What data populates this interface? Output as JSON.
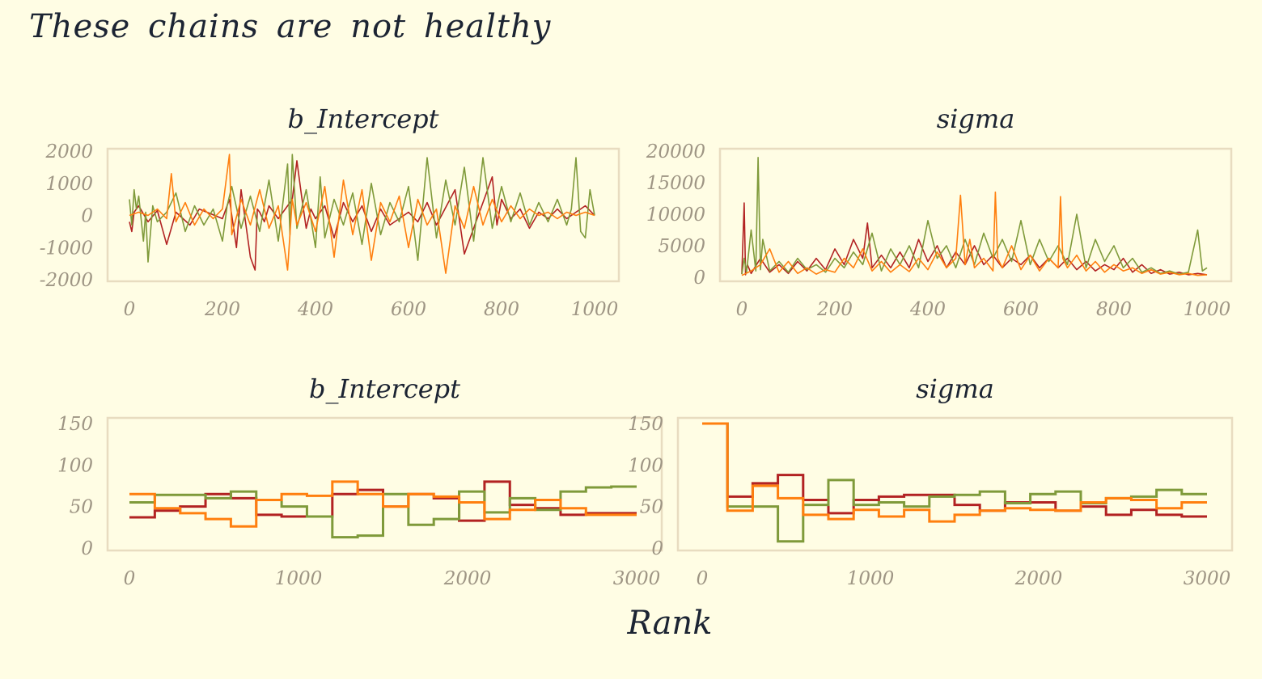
{
  "title": "These chains are not healthy",
  "colors": {
    "background": "#fffde4",
    "frame": "#e8dcc0",
    "tick_text": "#9e9584",
    "title_text": "#1c2433",
    "chain_1": "#b22222",
    "chain_2": "#7f9a3a",
    "chain_3": "#ff7f0e"
  },
  "chart_data": [
    {
      "type": "line",
      "title": "b_Intercept",
      "xlim": [
        0,
        1000
      ],
      "ylim": [
        -2000,
        2000
      ],
      "x_ticks": [
        "0",
        "200",
        "400",
        "600",
        "800",
        "1000"
      ],
      "y_ticks": [
        "2000",
        "1000",
        "0",
        "-1000",
        "-2000"
      ],
      "series": [
        {
          "color": "#b22222",
          "x": [
            0,
            5,
            10,
            20,
            40,
            60,
            80,
            100,
            130,
            150,
            200,
            215,
            230,
            240,
            260,
            270,
            275,
            280,
            290,
            300,
            320,
            350,
            360,
            370,
            380,
            390,
            400,
            420,
            440,
            460,
            480,
            500,
            520,
            540,
            560,
            600,
            620,
            640,
            660,
            700,
            720,
            740,
            760,
            780,
            790,
            800,
            820,
            840,
            860,
            880,
            900,
            920,
            940,
            960,
            980,
            1000
          ],
          "values": [
            -200,
            -500,
            100,
            300,
            -200,
            150,
            -900,
            100,
            -300,
            200,
            -100,
            500,
            -1000,
            800,
            -1300,
            -1700,
            200,
            100,
            -200,
            300,
            -100,
            500,
            1700,
            600,
            -400,
            200,
            -100,
            300,
            -700,
            400,
            -200,
            300,
            -500,
            200,
            -300,
            100,
            -200,
            400,
            -300,
            800,
            -1200,
            -400,
            400,
            1200,
            -300,
            500,
            -100,
            200,
            -400,
            100,
            -100,
            200,
            -100,
            100,
            300,
            0
          ]
        },
        {
          "color": "#7f9a3a",
          "x": [
            0,
            5,
            10,
            15,
            20,
            30,
            35,
            40,
            50,
            60,
            80,
            100,
            120,
            140,
            160,
            180,
            200,
            210,
            220,
            240,
            260,
            280,
            300,
            320,
            340,
            345,
            350,
            360,
            380,
            400,
            410,
            420,
            440,
            460,
            480,
            500,
            520,
            540,
            560,
            580,
            600,
            620,
            640,
            660,
            680,
            700,
            720,
            740,
            760,
            780,
            800,
            820,
            840,
            860,
            880,
            900,
            920,
            940,
            950,
            960,
            970,
            980,
            990,
            1000
          ],
          "values": [
            500,
            -300,
            800,
            200,
            600,
            -800,
            100,
            -1450,
            300,
            -200,
            100,
            700,
            -500,
            300,
            -300,
            200,
            -800,
            300,
            900,
            -400,
            600,
            -500,
            1100,
            -800,
            1600,
            -600,
            1900,
            -400,
            800,
            -1000,
            1200,
            -700,
            500,
            -300,
            700,
            -900,
            1000,
            -600,
            400,
            -200,
            900,
            -1400,
            1800,
            -700,
            1100,
            -300,
            1500,
            -800,
            1800,
            -400,
            900,
            -200,
            700,
            -300,
            400,
            -200,
            500,
            -300,
            200,
            1800,
            -500,
            -700,
            800,
            0
          ]
        },
        {
          "color": "#ff7f0e",
          "x": [
            0,
            20,
            40,
            60,
            80,
            90,
            100,
            120,
            140,
            160,
            180,
            200,
            215,
            220,
            240,
            260,
            280,
            300,
            320,
            340,
            350,
            360,
            380,
            400,
            420,
            440,
            460,
            480,
            500,
            520,
            540,
            560,
            580,
            600,
            620,
            640,
            660,
            680,
            700,
            720,
            740,
            760,
            780,
            800,
            820,
            840,
            860,
            880,
            900,
            920,
            940,
            960,
            980,
            1000
          ],
          "values": [
            0,
            100,
            0,
            200,
            -100,
            1300,
            -200,
            400,
            -300,
            200,
            -100,
            200,
            1900,
            -600,
            500,
            -300,
            800,
            -400,
            300,
            -1700,
            500,
            -300,
            400,
            -500,
            900,
            -1300,
            1100,
            -600,
            800,
            -1400,
            400,
            -200,
            600,
            -1000,
            500,
            -300,
            200,
            -1800,
            300,
            -400,
            900,
            -300,
            500,
            -200,
            300,
            -100,
            200,
            0,
            100,
            -100,
            100,
            0,
            100,
            0
          ]
        }
      ]
    },
    {
      "type": "line",
      "title": "sigma",
      "xlim": [
        0,
        1000
      ],
      "ylim": [
        0,
        20000
      ],
      "x_ticks": [
        "0",
        "200",
        "400",
        "600",
        "800",
        "1000"
      ],
      "y_ticks": [
        "20000",
        "15000",
        "10000",
        "5000",
        "0"
      ],
      "series": [
        {
          "color": "#b22222",
          "x": [
            0,
            5,
            8,
            12,
            20,
            40,
            60,
            80,
            100,
            120,
            140,
            160,
            180,
            200,
            220,
            240,
            260,
            270,
            280,
            300,
            320,
            340,
            360,
            380,
            400,
            420,
            440,
            460,
            480,
            500,
            520,
            540,
            560,
            580,
            600,
            620,
            640,
            660,
            680,
            700,
            720,
            740,
            760,
            780,
            800,
            820,
            840,
            860,
            880,
            900,
            920,
            940,
            960,
            980,
            1000
          ],
          "values": [
            500,
            11800,
            400,
            2000,
            600,
            3000,
            800,
            2000,
            600,
            2500,
            1000,
            3000,
            1200,
            4500,
            2000,
            6000,
            3000,
            8600,
            1500,
            3500,
            1500,
            4000,
            1500,
            6000,
            2500,
            5000,
            1500,
            4000,
            2000,
            5000,
            2000,
            3500,
            1500,
            3000,
            2000,
            3500,
            1500,
            3000,
            1500,
            3000,
            1200,
            2500,
            1000,
            2000,
            1200,
            3000,
            800,
            2000,
            600,
            1200,
            500,
            800,
            400,
            600,
            400
          ]
        },
        {
          "color": "#7f9a3a",
          "x": [
            0,
            5,
            10,
            20,
            30,
            35,
            40,
            45,
            60,
            80,
            100,
            120,
            140,
            160,
            180,
            200,
            220,
            240,
            260,
            280,
            300,
            320,
            340,
            360,
            380,
            400,
            420,
            440,
            460,
            480,
            500,
            520,
            540,
            560,
            580,
            600,
            620,
            640,
            660,
            680,
            700,
            720,
            740,
            760,
            780,
            800,
            820,
            840,
            860,
            880,
            900,
            920,
            940,
            960,
            980,
            990,
            1000
          ],
          "values": [
            500,
            3000,
            800,
            7500,
            1000,
            19000,
            1200,
            6000,
            1000,
            2500,
            800,
            3000,
            1200,
            2000,
            800,
            3000,
            1500,
            4000,
            2000,
            7000,
            1000,
            4500,
            2000,
            5000,
            1500,
            9000,
            3000,
            5000,
            1500,
            6000,
            2000,
            7000,
            3000,
            6000,
            2500,
            9000,
            2000,
            6000,
            2500,
            5000,
            2000,
            10000,
            1500,
            6000,
            2500,
            5000,
            1500,
            3000,
            800,
            1500,
            600,
            1000,
            500,
            800,
            7500,
            1000,
            1500
          ]
        },
        {
          "color": "#ff7f0e",
          "x": [
            0,
            20,
            40,
            60,
            80,
            100,
            120,
            140,
            160,
            180,
            200,
            220,
            240,
            260,
            280,
            300,
            320,
            340,
            360,
            380,
            400,
            420,
            440,
            460,
            470,
            480,
            490,
            500,
            520,
            540,
            545,
            550,
            560,
            580,
            600,
            620,
            640,
            660,
            680,
            685,
            690,
            700,
            720,
            740,
            760,
            780,
            800,
            820,
            840,
            860,
            880,
            900,
            920,
            940,
            960,
            980,
            1000
          ],
          "values": [
            300,
            1000,
            2000,
            4500,
            800,
            2500,
            600,
            1500,
            500,
            1200,
            800,
            3000,
            1500,
            4500,
            1000,
            2500,
            800,
            2000,
            900,
            3000,
            1200,
            4000,
            1500,
            3000,
            13000,
            2000,
            6000,
            1500,
            3000,
            1000,
            13500,
            3000,
            1500,
            5000,
            1200,
            3500,
            1000,
            3000,
            1500,
            12800,
            3000,
            1500,
            3500,
            1000,
            2500,
            800,
            2000,
            1000,
            1500,
            600,
            1200,
            500,
            800,
            400,
            600,
            300,
            400
          ]
        }
      ]
    },
    {
      "type": "line",
      "title": "b_Intercept",
      "xlabel": "Rank",
      "xlim": [
        0,
        3000
      ],
      "ylim": [
        0,
        150
      ],
      "x_ticks": [
        "0",
        "1000",
        "2000",
        "3000"
      ],
      "y_ticks": [
        "150",
        "100",
        "50",
        "0"
      ],
      "bin_edges": [
        0,
        150,
        300,
        450,
        600,
        750,
        900,
        1050,
        1200,
        1350,
        1500,
        1650,
        1800,
        1950,
        2100,
        2250,
        2400,
        2550,
        2700,
        2850,
        3000
      ],
      "series": [
        {
          "color": "#b22222",
          "values": [
            37,
            45,
            50,
            65,
            60,
            40,
            38,
            38,
            65,
            70,
            50,
            65,
            60,
            33,
            80,
            52,
            48,
            40,
            42,
            42
          ]
        },
        {
          "color": "#7f9a3a",
          "values": [
            55,
            64,
            64,
            60,
            68,
            58,
            50,
            38,
            13,
            15,
            65,
            28,
            35,
            68,
            43,
            60,
            46,
            68,
            73,
            74
          ]
        },
        {
          "color": "#ff7f0e",
          "values": [
            65,
            48,
            42,
            35,
            26,
            58,
            65,
            63,
            80,
            65,
            50,
            65,
            62,
            55,
            35,
            46,
            58,
            48,
            40,
            40
          ]
        }
      ]
    },
    {
      "type": "line",
      "title": "sigma",
      "xlim": [
        0,
        3000
      ],
      "ylim": [
        0,
        150
      ],
      "x_ticks": [
        "0",
        "1000",
        "2000",
        "3000"
      ],
      "y_ticks": [
        "150",
        "100",
        "50",
        "0"
      ],
      "bin_edges": [
        0,
        150,
        300,
        450,
        600,
        750,
        900,
        1050,
        1200,
        1350,
        1500,
        1650,
        1800,
        1950,
        2100,
        2250,
        2400,
        2550,
        2700,
        2850,
        3000
      ],
      "series": [
        {
          "color": "#b22222",
          "values": [
            150,
            62,
            78,
            88,
            58,
            42,
            58,
            62,
            64,
            64,
            52,
            45,
            55,
            55,
            45,
            50,
            40,
            46,
            40,
            38
          ]
        },
        {
          "color": "#7f9a3a",
          "values": [
            150,
            50,
            50,
            8,
            52,
            82,
            52,
            55,
            50,
            62,
            64,
            68,
            54,
            65,
            68,
            54,
            60,
            62,
            70,
            65
          ]
        },
        {
          "color": "#ff7f0e",
          "values": [
            150,
            45,
            75,
            60,
            40,
            35,
            46,
            38,
            46,
            32,
            40,
            45,
            48,
            46,
            45,
            55,
            60,
            58,
            48,
            55
          ]
        }
      ]
    }
  ]
}
